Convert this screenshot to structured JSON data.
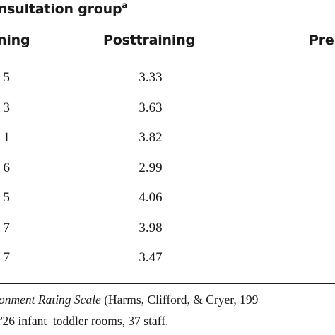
{
  "table": {
    "group_title": "onsultation group",
    "group_title_sup": "a",
    "col_pretraining_partial": "ning",
    "col_posttraining": "Posttraining",
    "col_pre_partial": "Pre",
    "rows": [
      {
        "left": "5",
        "post": "3.33"
      },
      {
        "left": "3",
        "post": "3.63"
      },
      {
        "left": "1",
        "post": "3.82"
      },
      {
        "left": "6",
        "post": "2.99"
      },
      {
        "left": "5",
        "post": "4.06"
      },
      {
        "left": "7",
        "post": "3.98"
      },
      {
        "left": "7",
        "post": "3.47"
      }
    ]
  },
  "footnotes": {
    "line1_italic": "onment Rating Scale",
    "line1_rest": " (Harms, Clifford, & Cryer, 199",
    "line2_sup": "b",
    "line2_rest": "26 infant–toddler rooms, 37 staff."
  }
}
